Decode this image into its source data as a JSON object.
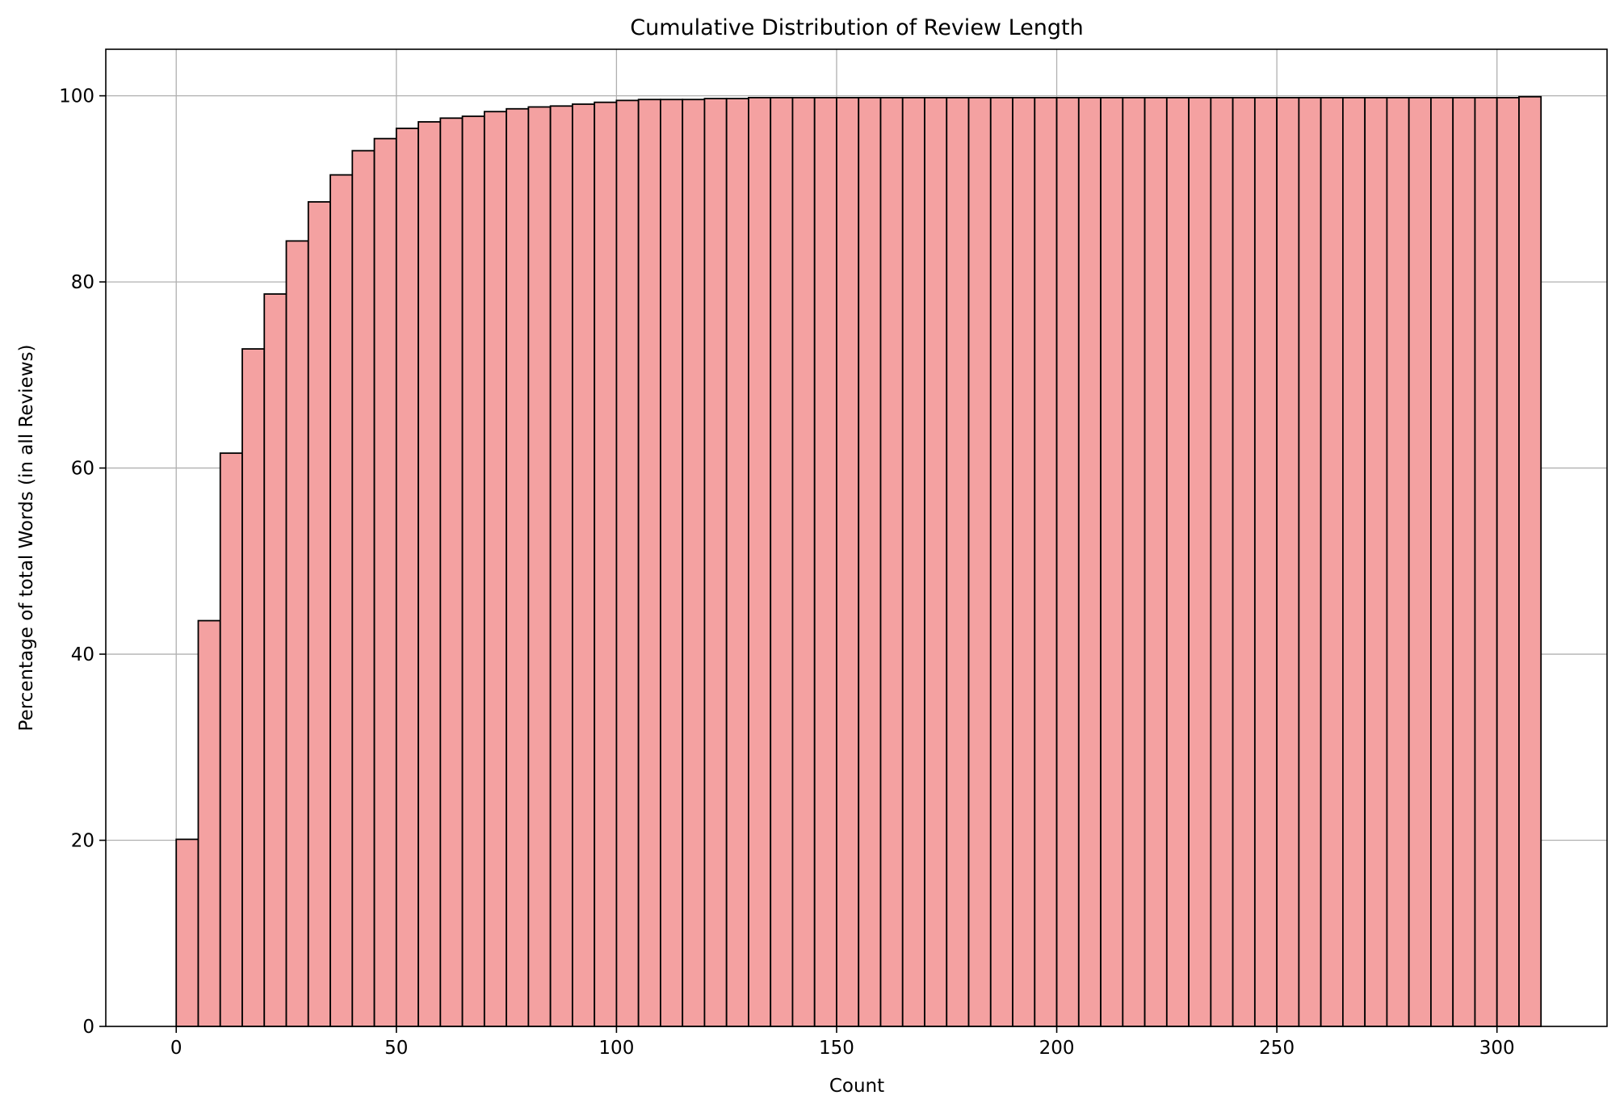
{
  "chart_data": {
    "type": "bar",
    "title": "Cumulative Distribution of Review Length",
    "xlabel": "Count",
    "ylabel": "Percentage of total Words (in all Reviews)",
    "xlim": [
      -16,
      325
    ],
    "ylim": [
      0,
      105
    ],
    "xticks": [
      0,
      50,
      100,
      150,
      200,
      250,
      300
    ],
    "yticks": [
      0,
      20,
      40,
      60,
      80,
      100
    ],
    "grid": true,
    "bar_color": "#f4a1a1",
    "edge_color": "#000000",
    "bin_width": 5,
    "bins_start": 0,
    "values": [
      20.1,
      43.6,
      61.6,
      72.8,
      78.7,
      84.4,
      88.6,
      91.5,
      94.1,
      95.4,
      96.5,
      97.2,
      97.6,
      97.8,
      98.3,
      98.6,
      98.8,
      98.9,
      99.1,
      99.3,
      99.5,
      99.6,
      99.6,
      99.6,
      99.7,
      99.7,
      99.8,
      99.8,
      99.8,
      99.8,
      99.8,
      99.8,
      99.8,
      99.8,
      99.8,
      99.8,
      99.8,
      99.8,
      99.8,
      99.8,
      99.8,
      99.8,
      99.8,
      99.8,
      99.8,
      99.8,
      99.8,
      99.8,
      99.8,
      99.8,
      99.8,
      99.8,
      99.8,
      99.8,
      99.8,
      99.8,
      99.8,
      99.8,
      99.8,
      99.8,
      99.8,
      99.9
    ]
  }
}
